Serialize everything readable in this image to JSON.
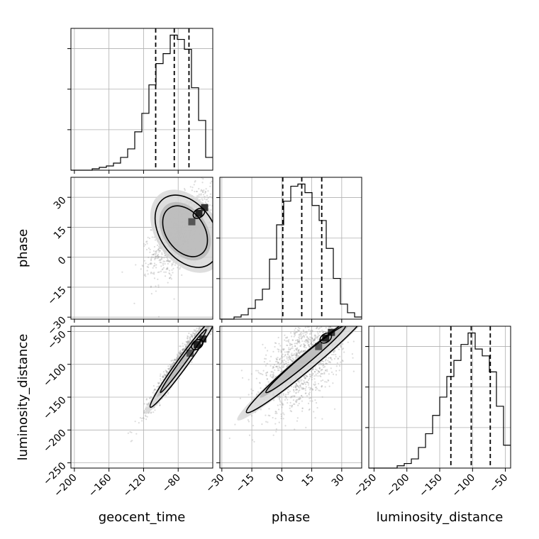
{
  "chart_data": {
    "type": "corner",
    "parameters": [
      "geocent_time",
      "phase",
      "luminosity_distance"
    ],
    "ranges": {
      "geocent_time": [
        -204,
        -40
      ],
      "phase": [
        -31,
        40
      ],
      "luminosity_distance": [
        -258,
        -42
      ]
    },
    "ticks": {
      "geocent_time": [
        -200,
        -160,
        -120,
        -80
      ],
      "phase": [
        -30,
        -15,
        0,
        15,
        30
      ],
      "luminosity_distance": [
        -250,
        -200,
        -150,
        -100,
        -50
      ]
    },
    "tick_labels": {
      "geocent_time": [
        "−200",
        "−160",
        "−120",
        "−80"
      ],
      "phase": [
        "−30",
        "−15",
        "0",
        "15",
        "30"
      ],
      "luminosity_distance": [
        "−250",
        "−200",
        "−150",
        "−100",
        "−50"
      ]
    },
    "xlabels": {
      "geocent_time": "geocent_time",
      "phase": "phase",
      "luminosity_distance": "luminosity_distance"
    },
    "ylabels": {
      "phase": "phase",
      "luminosity_distance": "luminosity_distance"
    },
    "grid": true,
    "histograms": [
      {
        "parameter": "geocent_time",
        "bin_edges": [
          -204,
          -195.8,
          -187.6,
          -179.4,
          -171.2,
          -163,
          -154.8,
          -146.6,
          -138.4,
          -130.2,
          -122,
          -113.8,
          -105.6,
          -97.4,
          -89.2,
          -81,
          -72.8,
          -64.6,
          -56.4,
          -48.2,
          -40
        ],
        "counts": [
          0,
          0,
          0,
          1,
          2,
          3,
          5,
          9,
          15,
          27,
          40,
          60,
          75,
          82,
          95,
          92,
          85,
          58,
          35,
          9
        ],
        "quantiles": [
          -106,
          -84.5,
          -67.5
        ]
      },
      {
        "parameter": "phase",
        "bin_edges": [
          -31,
          -27.45,
          -23.9,
          -20.35,
          -16.8,
          -13.25,
          -9.7,
          -6.15,
          -2.6,
          0.95,
          4.5,
          8.05,
          11.6,
          15.15,
          18.7,
          22.25,
          25.8,
          29.35,
          32.9,
          36.45,
          40
        ],
        "counts": [
          0,
          0,
          1,
          2,
          5,
          9,
          14,
          28,
          44,
          55,
          62,
          63,
          59,
          53,
          46,
          33,
          19,
          7,
          3,
          1
        ],
        "quantiles": [
          0.5,
          10,
          20
        ]
      },
      {
        "parameter": "luminosity_distance",
        "bin_edges": [
          -258,
          -247.2,
          -236.4,
          -225.6,
          -214.8,
          -204,
          -193.2,
          -182.4,
          -171.6,
          -160.8,
          -150,
          -139.2,
          -128.4,
          -117.6,
          -106.8,
          -96,
          -85.2,
          -74.4,
          -63.6,
          -52.8,
          -42
        ],
        "counts": [
          0,
          0,
          0,
          0,
          1,
          2,
          4,
          9,
          15,
          23,
          31,
          40,
          47,
          54,
          59,
          52,
          49,
          42,
          27,
          10
        ],
        "quantiles": [
          -133,
          -102,
          -73
        ]
      }
    ],
    "scatter_2d": [
      {
        "x_param": "geocent_time",
        "y_param": "phase",
        "mean": [
          -76,
          13
        ],
        "std": [
          17,
          10
        ],
        "correlation": 0.6,
        "contour_levels": [
          {
            "center": [
              -72,
              13
            ],
            "half_widths": [
              22,
              14
            ],
            "rotation_deg": 35
          },
          {
            "center": [
              -70,
              13
            ],
            "half_widths": [
              31,
              20
            ],
            "rotation_deg": 35
          }
        ],
        "density_peak": [
          -56,
          22
        ]
      },
      {
        "x_param": "geocent_time",
        "y_param": "luminosity_distance",
        "mean": [
          -80,
          -100
        ],
        "std": [
          18,
          35
        ],
        "correlation": 0.97,
        "contour_levels": [
          {
            "center": [
              -74,
              -95
            ],
            "half_widths": [
              45,
              4
            ],
            "rotation_deg": 54
          },
          {
            "center": [
              -74,
              -96
            ],
            "half_widths": [
              65,
              8
            ],
            "rotation_deg": 54
          }
        ],
        "density_peak": [
          -58,
          -70
        ]
      },
      {
        "x_param": "phase",
        "y_param": "luminosity_distance",
        "mean": [
          10,
          -100
        ],
        "std": [
          10,
          35
        ],
        "correlation": 0.55,
        "contour_levels": [
          {
            "center": [
              12,
              -92
            ],
            "half_widths": [
              26,
              7
            ],
            "rotation_deg": 40
          },
          {
            "center": [
              13,
              -95
            ],
            "half_widths": [
              40,
              12
            ],
            "rotation_deg": 40
          }
        ],
        "density_peak": [
          22,
          -60
        ]
      }
    ]
  }
}
